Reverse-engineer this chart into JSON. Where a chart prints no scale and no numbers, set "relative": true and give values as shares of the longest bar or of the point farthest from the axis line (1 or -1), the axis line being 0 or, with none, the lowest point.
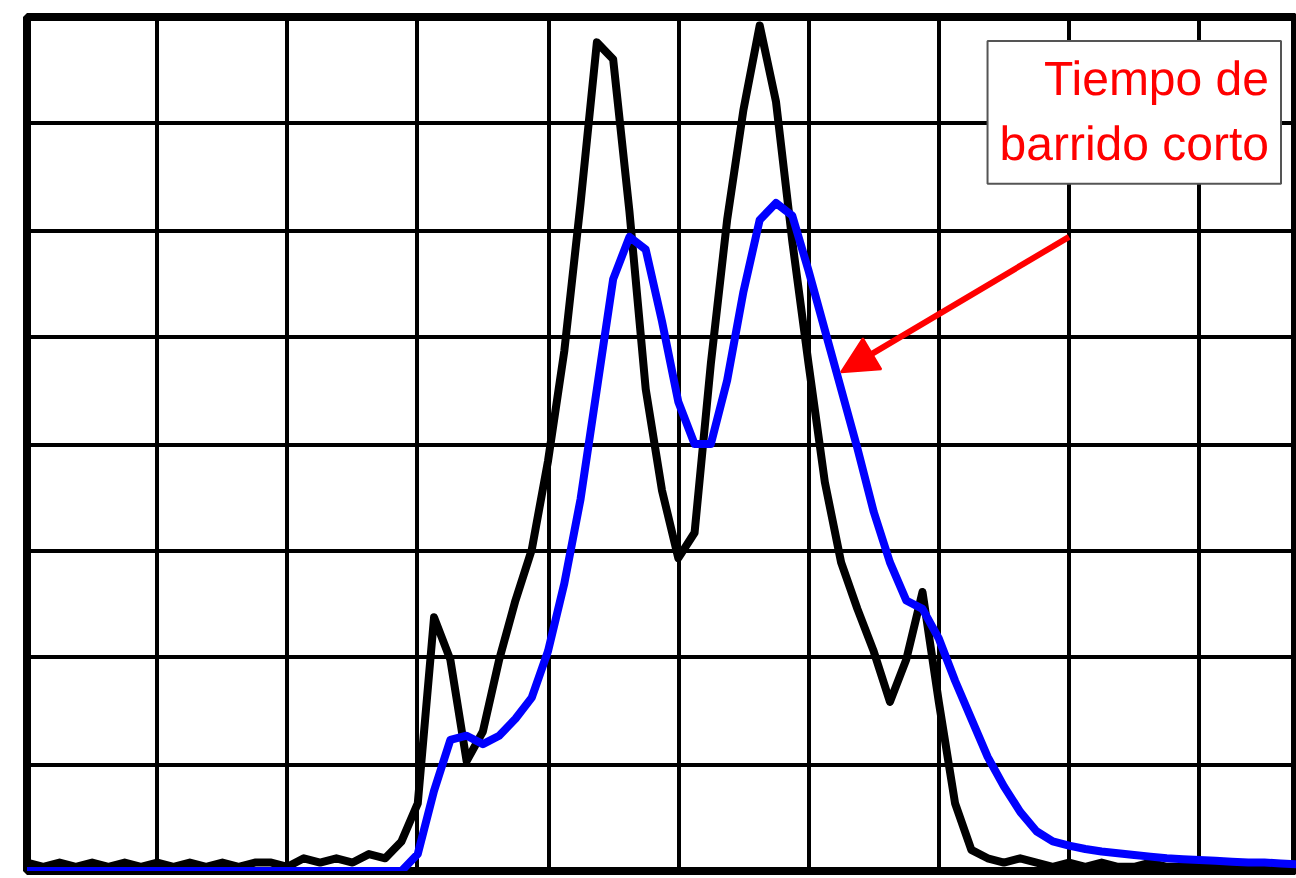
{
  "chart_data": {
    "type": "line",
    "relative": true,
    "grid": true,
    "marker": "none",
    "line_style": "solid",
    "categories": [
      null,
      null,
      null,
      null,
      null,
      null,
      null,
      null,
      null,
      null,
      null,
      null,
      null,
      null,
      null,
      null,
      null,
      null,
      null,
      null,
      null,
      null,
      null,
      null,
      null,
      null,
      null,
      null,
      null,
      null,
      null,
      null,
      null,
      null,
      null,
      null,
      null,
      null,
      null,
      null,
      null,
      null,
      null,
      null,
      null,
      null,
      null,
      null,
      null,
      null,
      null,
      null,
      null,
      null,
      null,
      null,
      null,
      null,
      null,
      null,
      null,
      null,
      null,
      null,
      null,
      null,
      null,
      null,
      null,
      null,
      null,
      null,
      null,
      null,
      null,
      null,
      null,
      null,
      null
    ],
    "series": [
      {
        "color": "#000000",
        "values": [
          0.01,
          0.005,
          0.01,
          0.005,
          0.01,
          0.005,
          0.01,
          0.005,
          0.01,
          0.005,
          0.01,
          0.005,
          0.01,
          0.005,
          0.01,
          0.01,
          0.005,
          0.015,
          0.01,
          0.015,
          0.01,
          0.02,
          0.015,
          0.035,
          0.08,
          0.3,
          0.25,
          0.13,
          0.165,
          0.25,
          0.32,
          0.38,
          0.485,
          0.615,
          0.79,
          0.98,
          0.96,
          0.78,
          0.57,
          0.45,
          0.37,
          0.4,
          0.6,
          0.77,
          0.9,
          1.0,
          0.91,
          0.745,
          0.6,
          0.46,
          0.365,
          0.31,
          0.26,
          0.2,
          0.25,
          0.33,
          0.2,
          0.08,
          0.025,
          0.015,
          0.01,
          0.015,
          0.01,
          0.005,
          0.01,
          0.005,
          0.01,
          0.005,
          0.005,
          0.01,
          0.005,
          0.005,
          0.005,
          0.01,
          0.005,
          0.005,
          0.005,
          0.005,
          0.005
        ]
      },
      {
        "color": "#0000ff",
        "values": [
          0,
          0,
          0,
          0,
          0,
          0,
          0,
          0,
          0,
          0,
          0,
          0,
          0,
          0,
          0,
          0,
          0,
          0,
          0,
          0,
          0,
          0,
          0,
          0,
          0.02,
          0.095,
          0.155,
          0.16,
          0.15,
          0.16,
          0.18,
          0.205,
          0.26,
          0.34,
          0.44,
          0.57,
          0.7,
          0.75,
          0.735,
          0.65,
          0.555,
          0.505,
          0.505,
          0.58,
          0.685,
          0.77,
          0.79,
          0.775,
          0.71,
          0.64,
          0.57,
          0.5,
          0.425,
          0.365,
          0.32,
          0.31,
          0.275,
          0.225,
          0.18,
          0.135,
          0.1,
          0.07,
          0.047,
          0.035,
          0.03,
          0.026,
          0.023,
          0.021,
          0.019,
          0.017,
          0.015,
          0.014,
          0.013,
          0.012,
          0.011,
          0.01,
          0.01,
          0.009,
          0.008
        ]
      }
    ],
    "annotations": [
      "Tiempo de barrido corto"
    ]
  }
}
